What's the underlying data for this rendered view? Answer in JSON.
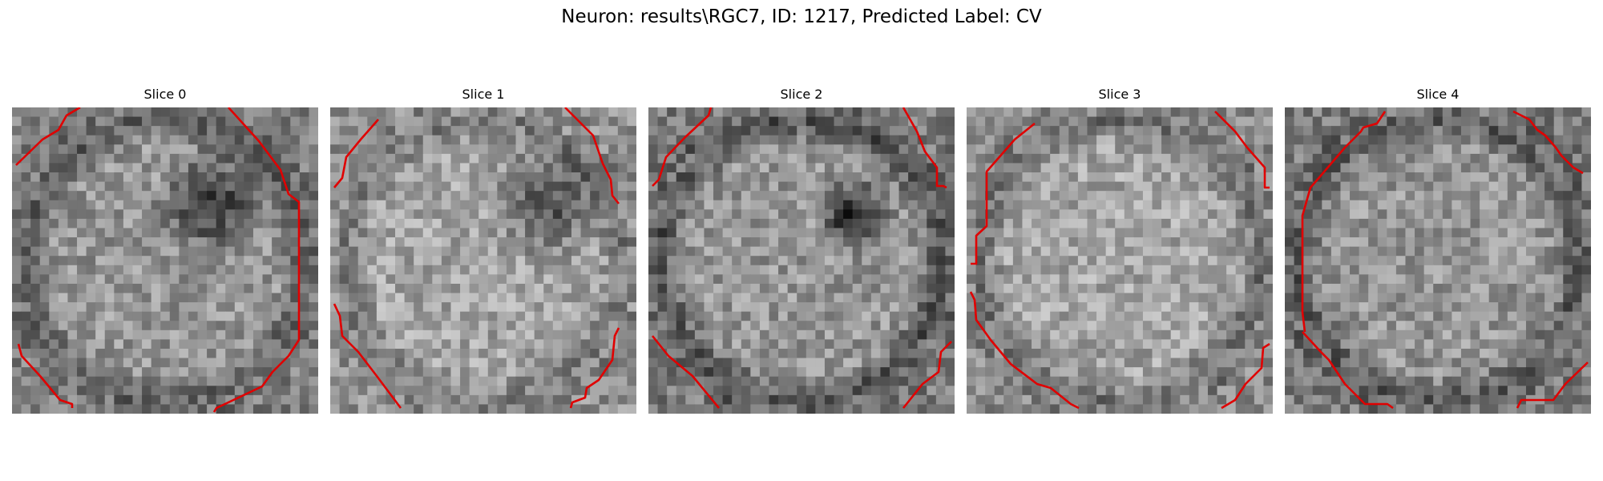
{
  "figure": {
    "title": "Neuron: results\\RGC7, ID: 1217, Predicted Label: CV",
    "contour_color": "#e00000"
  },
  "panels": [
    {
      "title": "Slice 0"
    },
    {
      "title": "Slice 1"
    },
    {
      "title": "Slice 2"
    },
    {
      "title": "Slice 3"
    },
    {
      "title": "Slice 4"
    }
  ]
}
